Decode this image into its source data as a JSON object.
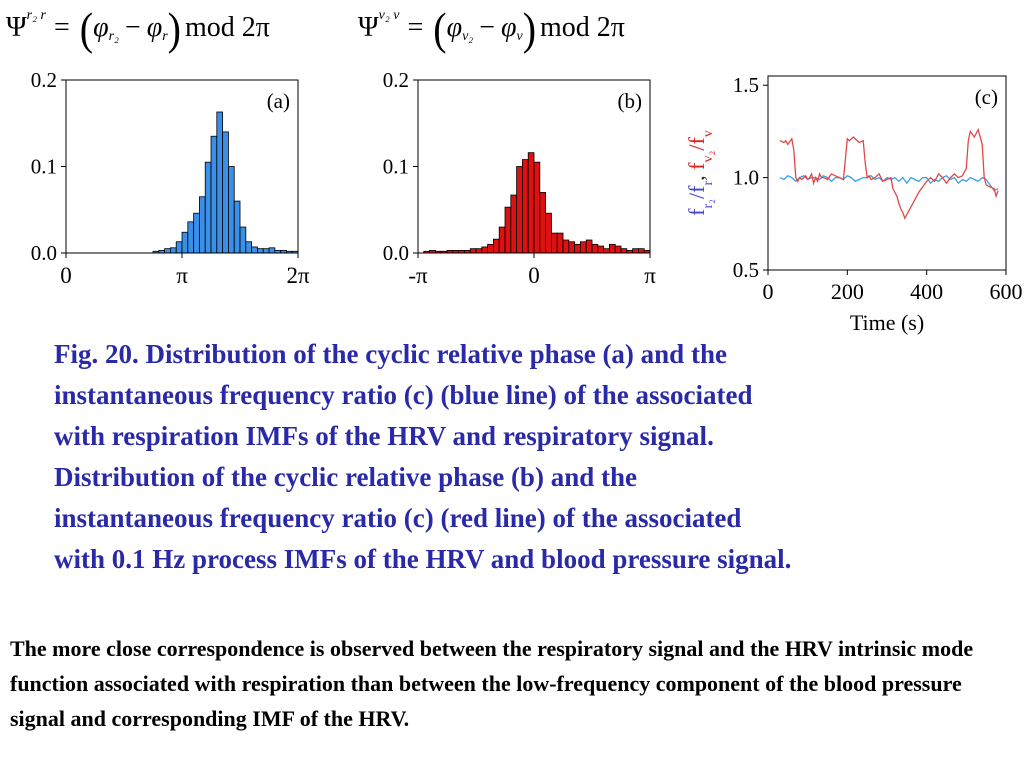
{
  "formulas": {
    "left": {
      "lhs": "Ψ",
      "sup": "r₂ r",
      "eq": "=",
      "phi1_sub": "r₂",
      "phi2_sub": "r",
      "mod": "mod 2π"
    },
    "right": {
      "lhs": "Ψ",
      "sup": "v₂ v",
      "eq": "=",
      "phi1_sub": "v₂",
      "phi2_sub": "v",
      "mod": "mod 2π"
    }
  },
  "chart_data": [
    {
      "type": "bar",
      "panel_label": "(a)",
      "color": "#3a8fe8",
      "xlim": [
        0,
        6.2832
      ],
      "ylim": [
        0,
        0.2
      ],
      "xticks": [
        {
          "value": 0,
          "label": "0"
        },
        {
          "value": 3.1416,
          "label": "π"
        },
        {
          "value": 6.2832,
          "label": "2π"
        }
      ],
      "yticks": [
        {
          "value": 0,
          "label": "0.0"
        },
        {
          "value": 0.1,
          "label": "0.1"
        },
        {
          "value": 0.2,
          "label": "0.2"
        }
      ],
      "bin_width": 0.1571,
      "bin_start": 0,
      "values": [
        0,
        0,
        0,
        0,
        0,
        0,
        0,
        0,
        0,
        0,
        0,
        0,
        0,
        0,
        0,
        0.002,
        0.003,
        0.005,
        0.006,
        0.013,
        0.024,
        0.036,
        0.046,
        0.065,
        0.105,
        0.135,
        0.163,
        0.14,
        0.1,
        0.06,
        0.03,
        0.013,
        0.007,
        0.005,
        0.005,
        0.006,
        0.003,
        0.003,
        0.002,
        0.002
      ]
    },
    {
      "type": "bar",
      "panel_label": "(b)",
      "color": "#dd1111",
      "xlim": [
        -3.1416,
        3.1416
      ],
      "ylim": [
        0,
        0.2
      ],
      "xticks": [
        {
          "value": -3.1416,
          "label": "-π"
        },
        {
          "value": 0,
          "label": "0"
        },
        {
          "value": 3.1416,
          "label": "π"
        }
      ],
      "yticks": [
        {
          "value": 0,
          "label": "0.0"
        },
        {
          "value": 0.1,
          "label": "0.1"
        },
        {
          "value": 0.2,
          "label": "0.2"
        }
      ],
      "bin_width": 0.1571,
      "bin_start": -3.1416,
      "values": [
        0,
        0.002,
        0.003,
        0.002,
        0.002,
        0.003,
        0.003,
        0.003,
        0.003,
        0.005,
        0.005,
        0.007,
        0.01,
        0.016,
        0.03,
        0.053,
        0.067,
        0.1,
        0.108,
        0.116,
        0.105,
        0.07,
        0.046,
        0.023,
        0.023,
        0.015,
        0.013,
        0.01,
        0.013,
        0.015,
        0.01,
        0.008,
        0.005,
        0.01,
        0.008,
        0.005,
        0.003,
        0.005,
        0.005,
        0.003
      ]
    },
    {
      "type": "line",
      "panel_label": "(c)",
      "xlabel": "Time (s)",
      "ylabel_parts": [
        {
          "text": "f",
          "sub": "r₂",
          "color": "#4545c8"
        },
        {
          "text": "/f",
          "sub": "r",
          "color": "#4545c8"
        },
        {
          "text": ", ",
          "sub": "",
          "color": "#333333"
        },
        {
          "text": "f",
          "sub": "v₂",
          "color": "#dd2222"
        },
        {
          "text": "/f",
          "sub": "v",
          "color": "#dd2222"
        }
      ],
      "xlim": [
        0,
        600
      ],
      "ylim": [
        0.5,
        1.55
      ],
      "xticks": [
        {
          "value": 0,
          "label": "0"
        },
        {
          "value": 200,
          "label": "200"
        },
        {
          "value": 400,
          "label": "400"
        },
        {
          "value": 600,
          "label": "600"
        }
      ],
      "yticks": [
        {
          "value": 0.5,
          "label": "0.5"
        },
        {
          "value": 1.0,
          "label": "1.0"
        },
        {
          "value": 1.5,
          "label": "1.5"
        }
      ],
      "series": [
        {
          "color": "#e04848",
          "x": [
            30,
            40,
            45,
            50,
            60,
            65,
            70,
            75,
            80,
            85,
            90,
            95,
            100,
            105,
            110,
            115,
            120,
            125,
            130,
            135,
            140,
            150,
            160,
            170,
            180,
            190,
            195,
            200,
            205,
            215,
            230,
            240,
            245,
            250,
            255,
            260,
            270,
            280,
            290,
            300,
            310,
            315,
            320,
            325,
            330,
            335,
            340,
            345,
            350,
            360,
            370,
            380,
            390,
            400,
            410,
            420,
            430,
            440,
            450,
            460,
            470,
            480,
            490,
            500,
            505,
            510,
            520,
            530,
            540,
            545,
            550,
            560,
            570,
            575,
            580
          ],
          "y": [
            1.2,
            1.19,
            1.2,
            1.18,
            1.21,
            1.15,
            1.0,
            0.98,
            1.0,
            0.99,
            1.0,
            1.01,
            0.99,
            1.0,
            1.02,
            0.97,
            1.0,
            0.98,
            1.02,
            1.0,
            1.0,
            0.99,
            1.02,
            1.01,
            1.0,
            0.99,
            1.1,
            1.21,
            1.2,
            1.22,
            1.19,
            1.2,
            1.08,
            1.0,
            1.01,
            0.99,
            1.0,
            1.02,
            0.98,
            0.99,
            1.0,
            0.94,
            0.92,
            0.9,
            0.86,
            0.83,
            0.81,
            0.78,
            0.8,
            0.84,
            0.88,
            0.92,
            0.95,
            0.98,
            1.0,
            0.98,
            1.02,
            1.0,
            0.97,
            1.0,
            1.02,
            1.0,
            1.01,
            1.05,
            1.2,
            1.25,
            1.22,
            1.26,
            1.18,
            1.0,
            0.96,
            0.95,
            0.94,
            0.9,
            0.93
          ]
        },
        {
          "color": "#3aa0e0",
          "x": [
            30,
            40,
            50,
            60,
            70,
            80,
            90,
            100,
            110,
            120,
            130,
            140,
            150,
            160,
            170,
            180,
            190,
            200,
            210,
            220,
            230,
            240,
            250,
            260,
            270,
            280,
            290,
            300,
            310,
            320,
            330,
            340,
            350,
            360,
            370,
            380,
            390,
            400,
            410,
            420,
            430,
            440,
            450,
            460,
            470,
            480,
            490,
            500,
            510,
            520,
            530,
            540,
            550,
            560,
            570,
            580
          ],
          "y": [
            1.0,
            0.99,
            1.01,
            1.0,
            0.98,
            1.0,
            1.01,
            0.99,
            1.0,
            1.0,
            0.99,
            1.01,
            1.0,
            0.98,
            1.0,
            1.0,
            0.99,
            1.01,
            1.0,
            0.98,
            0.99,
            1.0,
            1.0,
            1.01,
            0.99,
            1.0,
            0.98,
            1.0,
            0.99,
            1.0,
            0.98,
            1.0,
            0.97,
            1.0,
            0.99,
            0.98,
            1.0,
            1.0,
            0.97,
            0.99,
            0.98,
            1.0,
            1.01,
            0.99,
            1.0,
            0.97,
            0.99,
            0.98,
            1.0,
            0.99,
            0.98,
            1.0,
            0.99,
            0.96,
            0.93,
            0.94
          ]
        }
      ]
    }
  ],
  "caption_lines": [
    "Fig. 20. Distribution of the cyclic relative phase (a) and the",
    "instantaneous frequency ratio (c) (blue line) of the associated",
    "with respiration IMFs of the HRV and respiratory signal.",
    "Distribution of the cyclic relative phase (b) and the",
    "instantaneous frequency ratio (c) (red line) of the associated",
    "with 0.1 Hz process IMFs of the HRV and blood pressure signal."
  ],
  "note": "The more close correspondence is observed between the respiratory signal and the HRV intrinsic mode function associated with respiration than between the low-frequency component of the blood pressure signal and corresponding IMF of the HRV."
}
